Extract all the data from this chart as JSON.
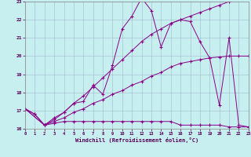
{
  "xlabel": "Windchill (Refroidissement éolien,°C)",
  "bg_color": "#c8eff0",
  "line_color": "#880088",
  "grid_color": "#a0b8cc",
  "xlim": [
    0,
    23
  ],
  "ylim": [
    16,
    23
  ],
  "yticks": [
    16,
    17,
    18,
    19,
    20,
    21,
    22,
    23
  ],
  "xticks": [
    0,
    1,
    2,
    3,
    4,
    5,
    6,
    7,
    8,
    9,
    10,
    11,
    12,
    13,
    14,
    15,
    16,
    17,
    18,
    19,
    20,
    21,
    22,
    23
  ],
  "line_flat_x": [
    0,
    1,
    2,
    3,
    4,
    5,
    6,
    7,
    8,
    9,
    10,
    11,
    12,
    13,
    14,
    15,
    16,
    17,
    18,
    19,
    20,
    21,
    22,
    23
  ],
  "line_flat_y": [
    17.1,
    16.8,
    16.2,
    16.3,
    16.4,
    16.4,
    16.4,
    16.4,
    16.4,
    16.4,
    16.4,
    16.4,
    16.4,
    16.4,
    16.4,
    16.4,
    16.2,
    16.2,
    16.2,
    16.2,
    16.2,
    16.1,
    16.1,
    16.1
  ],
  "line_jagged_x": [
    0,
    1,
    2,
    3,
    4,
    5,
    6,
    7,
    8,
    9,
    10,
    11,
    12,
    13,
    14,
    15,
    16,
    17,
    18,
    19,
    20,
    21,
    22,
    23
  ],
  "line_jagged_y": [
    17.1,
    16.8,
    16.2,
    16.6,
    16.9,
    17.4,
    17.5,
    18.4,
    17.9,
    19.5,
    21.5,
    22.2,
    23.2,
    22.5,
    20.5,
    21.8,
    22.0,
    21.9,
    20.8,
    19.9,
    17.3,
    21.0,
    16.2,
    16.1
  ],
  "line_upper_x": [
    0,
    2,
    3,
    4,
    5,
    6,
    7,
    8,
    9,
    10,
    11,
    12,
    13,
    14,
    15,
    16,
    17,
    18,
    19,
    20,
    21,
    22,
    23
  ],
  "line_upper_y": [
    17.1,
    16.2,
    16.5,
    16.9,
    17.4,
    17.8,
    18.3,
    18.8,
    19.3,
    19.8,
    20.3,
    20.8,
    21.2,
    21.5,
    21.8,
    22.0,
    22.2,
    22.4,
    22.6,
    22.8,
    23.0,
    23.2,
    23.4
  ],
  "line_lower_x": [
    0,
    2,
    3,
    4,
    5,
    6,
    7,
    8,
    9,
    10,
    11,
    12,
    13,
    14,
    15,
    16,
    17,
    18,
    19,
    20,
    21,
    22,
    23
  ],
  "line_lower_y": [
    17.1,
    16.2,
    16.4,
    16.6,
    16.9,
    17.1,
    17.4,
    17.6,
    17.9,
    18.1,
    18.4,
    18.6,
    18.9,
    19.1,
    19.4,
    19.6,
    19.7,
    19.8,
    19.9,
    19.95,
    20.0,
    20.0,
    20.0
  ]
}
